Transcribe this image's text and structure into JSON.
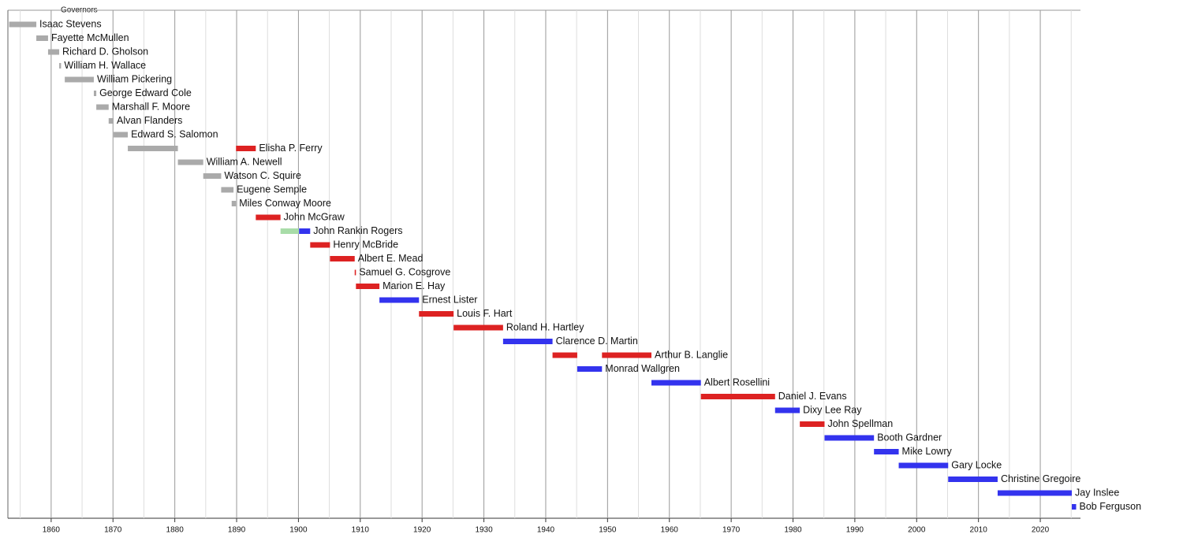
{
  "chart_data": {
    "type": "timeline",
    "title": "Governors",
    "xlim": [
      1853,
      2026.5
    ],
    "xticks": [
      1860,
      1870,
      1880,
      1890,
      1900,
      1910,
      1920,
      1930,
      1940,
      1950,
      1960,
      1970,
      1980,
      1990,
      2000,
      2010,
      2020
    ],
    "minor_xticks": [
      1855,
      1865,
      1875,
      1885,
      1895,
      1905,
      1915,
      1925,
      1935,
      1945,
      1955,
      1965,
      1975,
      1985,
      1995,
      2005,
      2015,
      2025
    ],
    "grid": true,
    "rows": [
      {
        "label": "Isaac Stevens",
        "segments": [
          {
            "start": 1853.2,
            "end": 1857.6,
            "color": "#aaaaaa"
          }
        ]
      },
      {
        "label": "Fayette McMullen",
        "segments": [
          {
            "start": 1857.6,
            "end": 1859.5,
            "color": "#aaaaaa"
          }
        ]
      },
      {
        "label": "Richard D. Gholson",
        "segments": [
          {
            "start": 1859.5,
            "end": 1861.3,
            "color": "#aaaaaa"
          }
        ]
      },
      {
        "label": "William H. Wallace",
        "segments": [
          {
            "start": 1861.3,
            "end": 1861.6,
            "color": "#aaaaaa"
          }
        ]
      },
      {
        "label": "William Pickering",
        "segments": [
          {
            "start": 1862.2,
            "end": 1866.9,
            "color": "#aaaaaa"
          }
        ]
      },
      {
        "label": "George Edward Cole",
        "segments": [
          {
            "start": 1866.9,
            "end": 1867.3,
            "color": "#aaaaaa"
          }
        ]
      },
      {
        "label": "Marshall F. Moore",
        "segments": [
          {
            "start": 1867.3,
            "end": 1869.3,
            "color": "#aaaaaa"
          }
        ]
      },
      {
        "label": "Alvan Flanders",
        "segments": [
          {
            "start": 1869.3,
            "end": 1870.1,
            "color": "#aaaaaa"
          }
        ]
      },
      {
        "label": "Edward S. Salomon",
        "segments": [
          {
            "start": 1870.1,
            "end": 1872.4,
            "color": "#aaaaaa"
          }
        ]
      },
      {
        "label": "Elisha P. Ferry",
        "segments": [
          {
            "start": 1872.4,
            "end": 1880.5,
            "color": "#aaaaaa"
          },
          {
            "start": 1889.9,
            "end": 1893.1,
            "color": "#dd2222"
          }
        ]
      },
      {
        "label": "William A. Newell",
        "segments": [
          {
            "start": 1880.5,
            "end": 1884.6,
            "color": "#aaaaaa"
          }
        ]
      },
      {
        "label": "Watson C. Squire",
        "segments": [
          {
            "start": 1884.6,
            "end": 1887.5,
            "color": "#aaaaaa"
          }
        ]
      },
      {
        "label": "Eugene Semple",
        "segments": [
          {
            "start": 1887.5,
            "end": 1889.5,
            "color": "#aaaaaa"
          }
        ]
      },
      {
        "label": "Miles Conway Moore",
        "segments": [
          {
            "start": 1889.2,
            "end": 1889.9,
            "color": "#aaaaaa"
          }
        ]
      },
      {
        "label": "John McGraw",
        "segments": [
          {
            "start": 1893.1,
            "end": 1897.1,
            "color": "#dd2222"
          }
        ]
      },
      {
        "label": "John Rankin Rogers",
        "segments": [
          {
            "start": 1897.1,
            "end": 1900.1,
            "color": "#a8dca8"
          },
          {
            "start": 1900.1,
            "end": 1901.9,
            "color": "#3333ee"
          }
        ]
      },
      {
        "label": "Henry McBride",
        "segments": [
          {
            "start": 1901.9,
            "end": 1905.1,
            "color": "#dd2222"
          }
        ]
      },
      {
        "label": "Albert E. Mead",
        "segments": [
          {
            "start": 1905.1,
            "end": 1909.1,
            "color": "#dd2222"
          }
        ]
      },
      {
        "label": "Samuel G. Cosgrove",
        "segments": [
          {
            "start": 1909.1,
            "end": 1909.3,
            "color": "#dd2222"
          }
        ]
      },
      {
        "label": "Marion E. Hay",
        "segments": [
          {
            "start": 1909.3,
            "end": 1913.1,
            "color": "#dd2222"
          }
        ]
      },
      {
        "label": "Ernest Lister",
        "segments": [
          {
            "start": 1913.1,
            "end": 1919.5,
            "color": "#3333ee"
          }
        ]
      },
      {
        "label": "Louis F. Hart",
        "segments": [
          {
            "start": 1919.5,
            "end": 1925.1,
            "color": "#dd2222"
          }
        ]
      },
      {
        "label": "Roland H. Hartley",
        "segments": [
          {
            "start": 1925.1,
            "end": 1933.1,
            "color": "#dd2222"
          }
        ]
      },
      {
        "label": "Clarence D. Martin",
        "segments": [
          {
            "start": 1933.1,
            "end": 1941.1,
            "color": "#3333ee"
          }
        ]
      },
      {
        "label": "Arthur B. Langlie",
        "segments": [
          {
            "start": 1941.1,
            "end": 1945.1,
            "color": "#dd2222"
          },
          {
            "start": 1949.1,
            "end": 1957.1,
            "color": "#dd2222"
          }
        ]
      },
      {
        "label": "Monrad Wallgren",
        "segments": [
          {
            "start": 1945.1,
            "end": 1949.1,
            "color": "#3333ee"
          }
        ]
      },
      {
        "label": "Albert Rosellini",
        "segments": [
          {
            "start": 1957.1,
            "end": 1965.1,
            "color": "#3333ee"
          }
        ]
      },
      {
        "label": "Daniel J. Evans",
        "segments": [
          {
            "start": 1965.1,
            "end": 1977.1,
            "color": "#dd2222"
          }
        ]
      },
      {
        "label": "Dixy Lee Ray",
        "segments": [
          {
            "start": 1977.1,
            "end": 1981.1,
            "color": "#3333ee"
          }
        ]
      },
      {
        "label": "John Spellman",
        "segments": [
          {
            "start": 1981.1,
            "end": 1985.1,
            "color": "#dd2222"
          }
        ]
      },
      {
        "label": "Booth Gardner",
        "segments": [
          {
            "start": 1985.1,
            "end": 1993.1,
            "color": "#3333ee"
          }
        ]
      },
      {
        "label": "Mike Lowry",
        "segments": [
          {
            "start": 1993.1,
            "end": 1997.1,
            "color": "#3333ee"
          }
        ]
      },
      {
        "label": "Gary Locke",
        "segments": [
          {
            "start": 1997.1,
            "end": 2005.1,
            "color": "#3333ee"
          }
        ]
      },
      {
        "label": "Christine Gregoire",
        "segments": [
          {
            "start": 2005.1,
            "end": 2013.1,
            "color": "#3333ee"
          }
        ]
      },
      {
        "label": "Jay Inslee",
        "segments": [
          {
            "start": 2013.1,
            "end": 2025.1,
            "color": "#3333ee"
          }
        ]
      },
      {
        "label": "Bob Ferguson",
        "segments": [
          {
            "start": 2025.1,
            "end": 2025.8,
            "color": "#3333ee"
          }
        ]
      }
    ]
  }
}
